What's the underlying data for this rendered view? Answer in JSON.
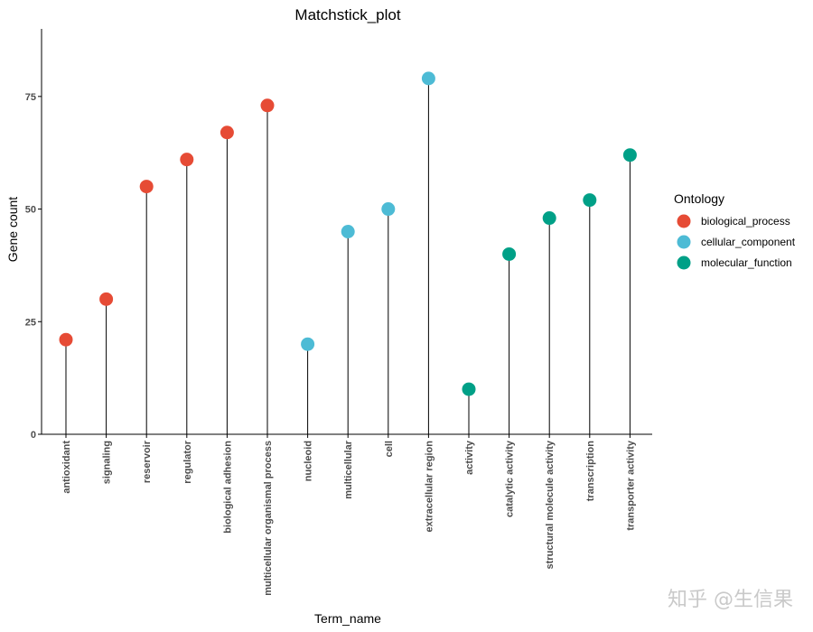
{
  "chart_data": {
    "type": "lollipop",
    "title": "Matchstick_plot",
    "xlabel": "Term_name",
    "ylabel": "Gene count",
    "ylim": [
      0,
      90
    ],
    "yticks": [
      0,
      25,
      50,
      75
    ],
    "grid": false,
    "categories": [
      "antioxidant",
      "signaling",
      "reservoir",
      "regulator",
      "biological adhesion",
      "multicellular organismal process",
      "nucleoid",
      "multicellular",
      "cell",
      "extracellular region",
      "activity",
      "catalytic activity",
      "structural molecule activity",
      "transcription",
      "transporter activity"
    ],
    "values": [
      21,
      30,
      55,
      61,
      67,
      73,
      20,
      45,
      50,
      79,
      10,
      40,
      48,
      52,
      62
    ],
    "groups": [
      "biological_process",
      "biological_process",
      "biological_process",
      "biological_process",
      "biological_process",
      "biological_process",
      "cellular_component",
      "cellular_component",
      "cellular_component",
      "cellular_component",
      "molecular_function",
      "molecular_function",
      "molecular_function",
      "molecular_function",
      "molecular_function"
    ],
    "legend": {
      "title": "Ontology",
      "position": "right",
      "entries": [
        {
          "name": "biological_process",
          "color": "#E64B35"
        },
        {
          "name": "cellular_component",
          "color": "#4DBBD5"
        },
        {
          "name": "molecular_function",
          "color": "#00A087"
        }
      ]
    }
  },
  "watermark": "知乎 @生信果"
}
